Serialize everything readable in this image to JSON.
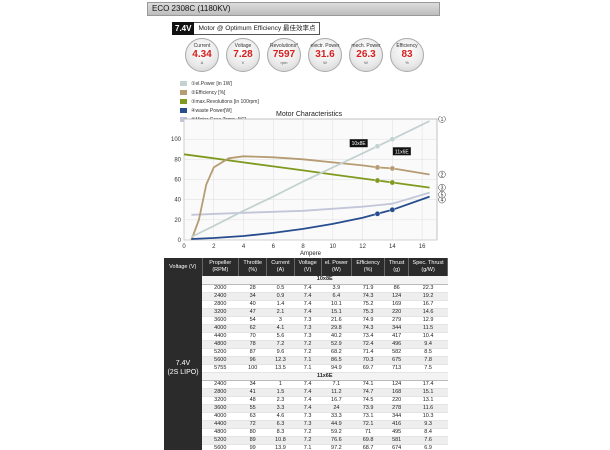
{
  "header": {
    "title": "ECO 2308C (1180KV)"
  },
  "subtitle": {
    "voltage": "7.4V",
    "text": "Motor @ Optimum Efficiency  最佳效率点"
  },
  "metrics": [
    {
      "label": "Current",
      "value": "4.34",
      "unit": "A"
    },
    {
      "label": "Voltage",
      "value": "7.28",
      "unit": "V"
    },
    {
      "label": "Revolutions*",
      "value": "7597",
      "unit": "rpm"
    },
    {
      "label": "electr. Power",
      "value": "31.6",
      "unit": "W"
    },
    {
      "label": "mech. Power",
      "value": "26.3",
      "unit": "W"
    },
    {
      "label": "Efficiency",
      "value": "83",
      "unit": "%"
    }
  ],
  "legend": [
    {
      "text": "①el.Power [in 1W]",
      "color": "#c4d1d1"
    },
    {
      "text": "②Efficiency [%]",
      "color": "#b69c72"
    },
    {
      "text": "③max.Revolutions [in 100rpm]",
      "color": "#7f9a1e"
    },
    {
      "text": "④waste Power[W]",
      "color": "#274d8e"
    },
    {
      "text": "⑤Motor Case Temp. [°C]",
      "color": "#c2c6d8"
    }
  ],
  "chart_data": {
    "type": "line",
    "title": "Motor Characteristics",
    "xlabel": "Ampere",
    "ylabel": "",
    "xlim": [
      0,
      17
    ],
    "ylim": [
      0,
      120
    ],
    "xticks": [
      0,
      2,
      4,
      6,
      8,
      10,
      12,
      14,
      16
    ],
    "yticks": [
      0,
      20,
      40,
      60,
      80,
      100
    ],
    "grid": true,
    "annotations": [
      "10x8E",
      "11x6E"
    ],
    "markers": [
      {
        "x": 13,
        "series": [
          "el.Power",
          "Efficiency",
          "max.Revolutions",
          "waste Power"
        ]
      },
      {
        "x": 14,
        "series": [
          "el.Power",
          "Efficiency",
          "max.Revolutions",
          "waste Power"
        ]
      }
    ],
    "series": [
      {
        "name": "el.Power [in 1W]",
        "marker": "①",
        "color": "#c4d1d1",
        "x": [
          0.5,
          2,
          4,
          6,
          8,
          10,
          12,
          13,
          14,
          16.5
        ],
        "y": [
          3,
          14,
          29,
          43,
          58,
          72,
          86,
          93,
          100,
          118
        ]
      },
      {
        "name": "Efficiency [%]",
        "marker": "②",
        "color": "#b69c72",
        "x": [
          0.5,
          1,
          1.5,
          2,
          3,
          4,
          6,
          8,
          10,
          12,
          13,
          14,
          16.5
        ],
        "y": [
          0,
          20,
          55,
          72,
          81,
          83,
          82,
          80,
          77,
          74,
          72,
          71,
          65
        ]
      },
      {
        "name": "max.Revolutions [in 100rpm]",
        "marker": "③",
        "color": "#7f9a1e",
        "x": [
          0,
          2,
          4,
          6,
          8,
          10,
          12,
          13,
          14,
          16.5
        ],
        "y": [
          85,
          81,
          77,
          73,
          69,
          65,
          61,
          59,
          57,
          52
        ]
      },
      {
        "name": "waste Power[W]",
        "marker": "④",
        "color": "#274d8e",
        "x": [
          0.5,
          2,
          4,
          6,
          8,
          10,
          12,
          13,
          14,
          16.5
        ],
        "y": [
          1,
          2,
          4,
          7,
          11,
          16,
          22,
          26,
          30,
          43
        ]
      },
      {
        "name": "Motor Case Temp. [°C]",
        "marker": "⑤",
        "color": "#c2c6d8",
        "x": [
          0.5,
          4,
          8,
          12,
          14,
          16.5
        ],
        "y": [
          25,
          27,
          29,
          33,
          36,
          47
        ]
      }
    ]
  },
  "table": {
    "voltage_label": "7.4V\n(2S LIPO)",
    "headers": [
      "Voltage (V)",
      "Propeller (RPM)",
      "Throttle (%)",
      "Current (A)",
      "Voltage (V)",
      "el. Power (W)",
      "Efficiency (%)",
      "Thrust (g)",
      "Spec. Thrust (g/W)"
    ],
    "groups": [
      {
        "name": "10x8E",
        "rows": [
          [
            "2000",
            "28",
            "0.5",
            "7.4",
            "3.9",
            "71.9",
            "86",
            "22.3"
          ],
          [
            "2400",
            "34",
            "0.9",
            "7.4",
            "6.4",
            "74.3",
            "124",
            "19.2"
          ],
          [
            "2800",
            "40",
            "1.4",
            "7.4",
            "10.1",
            "75.2",
            "169",
            "16.7"
          ],
          [
            "3200",
            "47",
            "2.1",
            "7.4",
            "15.1",
            "75.3",
            "220",
            "14.6"
          ],
          [
            "3600",
            "54",
            "3",
            "7.3",
            "21.6",
            "74.9",
            "279",
            "12.9"
          ],
          [
            "4000",
            "62",
            "4.1",
            "7.3",
            "29.8",
            "74.3",
            "344",
            "11.5"
          ],
          [
            "4400",
            "70",
            "5.6",
            "7.3",
            "40.2",
            "73.4",
            "417",
            "10.4"
          ],
          [
            "4800",
            "78",
            "7.2",
            "7.2",
            "52.9",
            "72.4",
            "496",
            "9.4"
          ],
          [
            "5200",
            "87",
            "9.6",
            "7.2",
            "68.2",
            "71.4",
            "582",
            "8.5"
          ],
          [
            "5600",
            "96",
            "12.3",
            "7.1",
            "86.5",
            "70.3",
            "675",
            "7.8"
          ],
          [
            "5755",
            "100",
            "13.5",
            "7.1",
            "94.9",
            "69.7",
            "713",
            "7.5"
          ]
        ]
      },
      {
        "name": "11x6E",
        "rows": [
          [
            "2400",
            "34",
            "1",
            "7.4",
            "7.1",
            "74.1",
            "124",
            "17.4"
          ],
          [
            "2800",
            "41",
            "1.5",
            "7.4",
            "11.2",
            "74.7",
            "168",
            "15.1"
          ],
          [
            "3200",
            "48",
            "2.3",
            "7.4",
            "16.7",
            "74.5",
            "220",
            "13.1"
          ],
          [
            "3600",
            "55",
            "3.3",
            "7.4",
            "24",
            "73.9",
            "278",
            "11.6"
          ],
          [
            "4000",
            "63",
            "4.6",
            "7.3",
            "33.3",
            "73.1",
            "344",
            "10.3"
          ],
          [
            "4400",
            "72",
            "6.3",
            "7.3",
            "44.9",
            "72.1",
            "416",
            "9.3"
          ],
          [
            "4800",
            "80",
            "8.3",
            "7.2",
            "59.2",
            "71",
            "495",
            "8.4"
          ],
          [
            "5200",
            "89",
            "10.8",
            "7.2",
            "76.6",
            "69.8",
            "581",
            "7.6"
          ],
          [
            "5600",
            "99",
            "13.9",
            "7.1",
            "97.2",
            "68.7",
            "674",
            "6.9"
          ],
          [
            "5625",
            "100",
            "14.2",
            "7.1",
            "99.2",
            "68.4",
            "680",
            "6.9"
          ]
        ]
      }
    ]
  }
}
